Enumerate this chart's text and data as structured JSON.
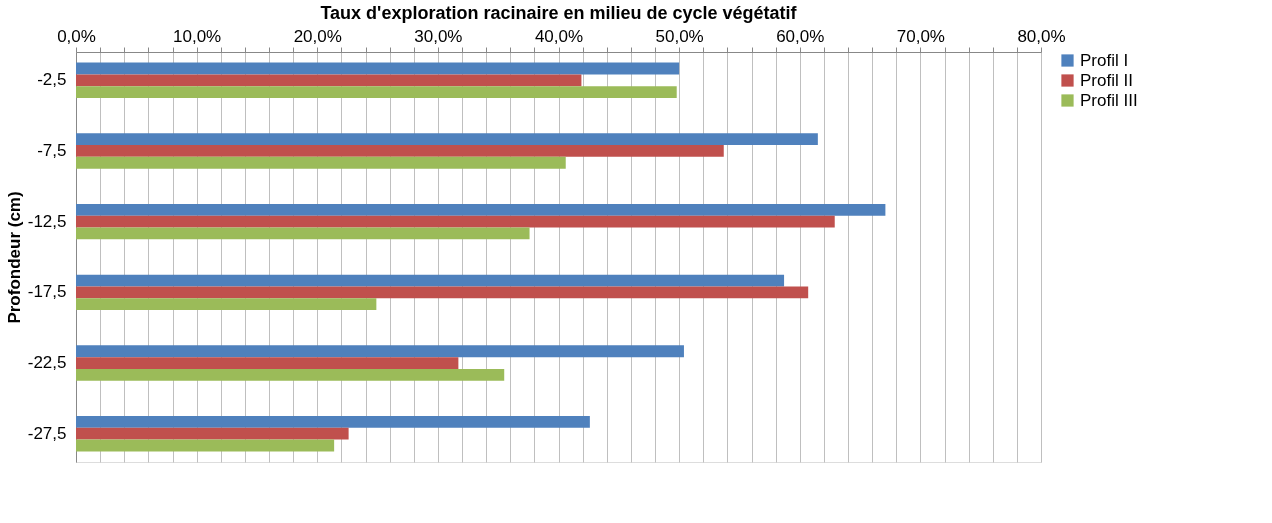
{
  "chart_data": {
    "type": "bar",
    "orientation": "horizontal",
    "title": "Taux d'exploration racinaire en milieu de cycle végétatif",
    "ylabel": "Profondeur (cm)",
    "categories": [
      "-2,5",
      "-7,5",
      "-12,5",
      "-17,5",
      "-22,5",
      "-27,5"
    ],
    "series": [
      {
        "name": "Profil I",
        "color": "#4f81bd",
        "values": [
          50.0,
          61.5,
          67.1,
          58.7,
          50.4,
          42.6
        ]
      },
      {
        "name": "Profil II",
        "color": "#c0504d",
        "values": [
          41.9,
          53.7,
          62.9,
          60.7,
          31.7,
          22.6
        ]
      },
      {
        "name": "Profil III",
        "color": "#9bbb59",
        "values": [
          49.8,
          40.6,
          37.6,
          24.9,
          35.5,
          21.4
        ]
      }
    ],
    "xlim": [
      0,
      80
    ],
    "xticks": [
      {
        "value": 0,
        "label": "0,0%"
      },
      {
        "value": 2,
        "label": null
      },
      {
        "value": 4,
        "label": null
      },
      {
        "value": 6,
        "label": null
      },
      {
        "value": 8,
        "label": null
      },
      {
        "value": 10,
        "label": "10,0%"
      },
      {
        "value": 12,
        "label": null
      },
      {
        "value": 14,
        "label": null
      },
      {
        "value": 16,
        "label": null
      },
      {
        "value": 18,
        "label": null
      },
      {
        "value": 20,
        "label": "20,0%"
      },
      {
        "value": 22,
        "label": null
      },
      {
        "value": 24,
        "label": null
      },
      {
        "value": 26,
        "label": null
      },
      {
        "value": 28,
        "label": null
      },
      {
        "value": 30,
        "label": "30,0%"
      },
      {
        "value": 32,
        "label": null
      },
      {
        "value": 34,
        "label": null
      },
      {
        "value": 36,
        "label": null
      },
      {
        "value": 38,
        "label": null
      },
      {
        "value": 40,
        "label": "40,0%"
      },
      {
        "value": 42,
        "label": null
      },
      {
        "value": 44,
        "label": null
      },
      {
        "value": 46,
        "label": null
      },
      {
        "value": 48,
        "label": null
      },
      {
        "value": 50,
        "label": "50,0%"
      },
      {
        "value": 52,
        "label": null
      },
      {
        "value": 54,
        "label": null
      },
      {
        "value": 56,
        "label": null
      },
      {
        "value": 58,
        "label": null
      },
      {
        "value": 60,
        "label": "60,0%"
      },
      {
        "value": 62,
        "label": null
      },
      {
        "value": 64,
        "label": null
      },
      {
        "value": 66,
        "label": null
      },
      {
        "value": 68,
        "label": null
      },
      {
        "value": 70,
        "label": "70,0%"
      },
      {
        "value": 72,
        "label": null
      },
      {
        "value": 74,
        "label": null
      },
      {
        "value": 76,
        "label": null
      },
      {
        "value": 78,
        "label": null
      },
      {
        "value": 80,
        "label": "80,0%"
      }
    ],
    "grid": true,
    "legend": "right"
  }
}
